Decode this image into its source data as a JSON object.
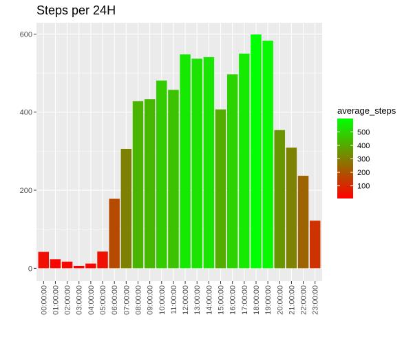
{
  "chart_data": {
    "type": "bar",
    "title": "Steps per 24H",
    "xlabel": "",
    "ylabel": "",
    "categories": [
      "00:00:00",
      "01:00:00",
      "02:00:00",
      "03:00:00",
      "04:00:00",
      "05:00:00",
      "06:00:00",
      "07:00:00",
      "08:00:00",
      "09:00:00",
      "10:00:00",
      "11:00:00",
      "12:00:00",
      "13:00:00",
      "14:00:00",
      "15:00:00",
      "16:00:00",
      "17:00:00",
      "18:00:00",
      "19:00:00",
      "20:00:00",
      "21:00:00",
      "22:00:00",
      "23:00:00"
    ],
    "values": [
      42,
      23,
      17,
      6,
      12,
      43,
      178,
      306,
      428,
      433,
      481,
      457,
      548,
      537,
      541,
      407,
      497,
      550,
      599,
      583,
      354,
      309,
      237,
      122
    ],
    "ylim": [
      -33,
      629
    ],
    "y_ticks": [
      0,
      200,
      400,
      600
    ],
    "y_tick_labels": [
      "0",
      "200",
      "400",
      "600"
    ],
    "grid": true,
    "fill_scale": {
      "name": "average_steps",
      "low_color": "#ff0000",
      "high_color": "#00ff00",
      "min": 6,
      "max": 599,
      "breaks": [
        100,
        200,
        300,
        400,
        500
      ],
      "break_labels": [
        "100",
        "200",
        "300",
        "400",
        "500"
      ]
    },
    "legend_position": "right",
    "panel_background": "#ebebeb",
    "grid_color": "#ffffff"
  }
}
